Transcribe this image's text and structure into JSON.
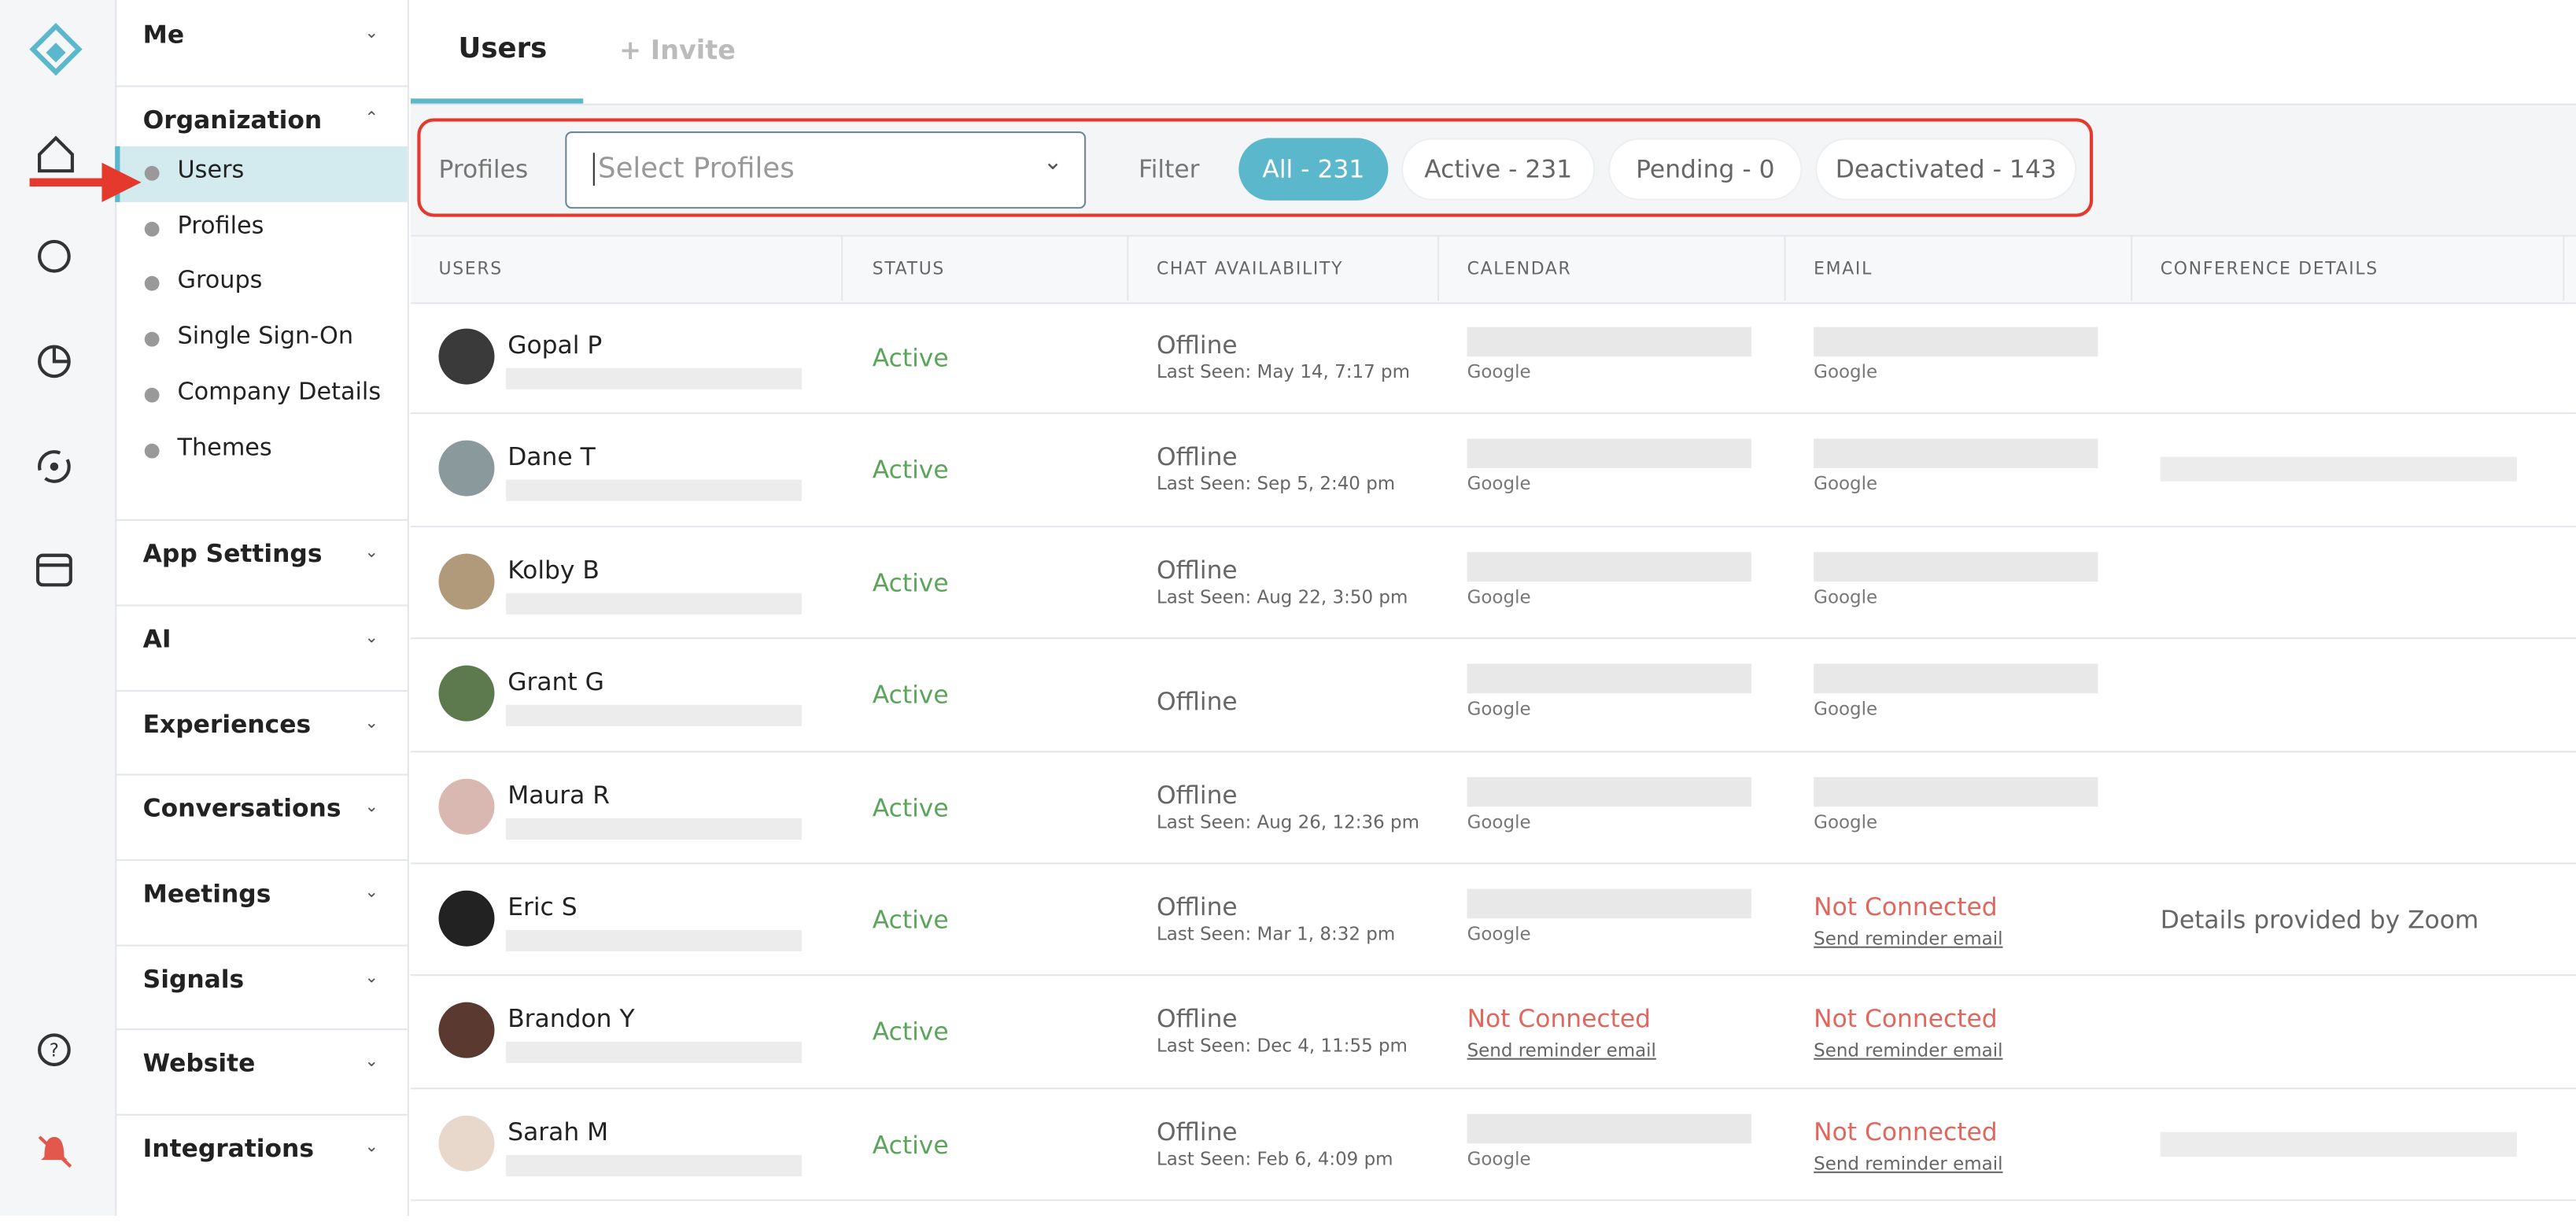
{
  "nav": {
    "sections": [
      {
        "label": "Me"
      },
      {
        "label": "Organization",
        "items": [
          "Users",
          "Profiles",
          "Groups",
          "Single Sign-On",
          "Company Details",
          "Themes"
        ]
      },
      {
        "label": "App Settings"
      },
      {
        "label": "AI"
      },
      {
        "label": "Experiences"
      },
      {
        "label": "Conversations"
      },
      {
        "label": "Meetings"
      },
      {
        "label": "Signals"
      },
      {
        "label": "Website"
      },
      {
        "label": "Integrations"
      }
    ]
  },
  "tabs": [
    "Users",
    "+ Invite"
  ],
  "filter_bar": {
    "profiles_label": "Profiles",
    "profiles_placeholder": "Select Profiles",
    "filter_label": "Filter",
    "filters": [
      "All - 231",
      "Active - 231",
      "Pending - 0",
      "Deactivated - 143"
    ]
  },
  "table": {
    "headers": [
      "USERS",
      "STATUS",
      "CHAT AVAILABILITY",
      "CALENDAR",
      "EMAIL",
      "CONFERENCE DETAILS"
    ],
    "rows": [
      {
        "name": "Gopal P",
        "status": "Active",
        "chat": "Offline",
        "last_seen": "Last Seen: May 14, 7:17 pm",
        "calendar": {
          "provider": "Google"
        },
        "email": {
          "provider": "Google"
        }
      },
      {
        "name": "Dane T",
        "status": "Active",
        "chat": "Offline",
        "last_seen": "Last Seen: Sep 5, 2:40 pm",
        "calendar": {
          "provider": "Google"
        },
        "email": {
          "provider": "Google"
        }
      },
      {
        "name": "Kolby B",
        "status": "Active",
        "chat": "Offline",
        "last_seen": "Last Seen: Aug 22, 3:50 pm",
        "calendar": {
          "provider": "Google"
        },
        "email": {
          "provider": "Google"
        }
      },
      {
        "name": "Grant G",
        "status": "Active",
        "chat": "Offline",
        "calendar": {
          "provider": "Google"
        },
        "email": {
          "provider": "Google"
        }
      },
      {
        "name": "Maura R",
        "status": "Active",
        "chat": "Offline",
        "last_seen": "Last Seen: Aug 26, 12:36 pm",
        "calendar": {
          "provider": "Google"
        },
        "email": {
          "provider": "Google"
        }
      },
      {
        "name": "Eric S",
        "status": "Active",
        "chat": "Offline",
        "last_seen": "Last Seen: Mar 1, 8:32 pm",
        "calendar": {
          "provider": "Google"
        },
        "email": {
          "status": "Not Connected",
          "action": "Send reminder email"
        },
        "conference": "Details provided by Zoom"
      },
      {
        "name": "Brandon Y",
        "status": "Active",
        "chat": "Offline",
        "last_seen": "Last Seen: Dec 4, 11:55 pm",
        "calendar": {
          "status": "Not Connected",
          "action": "Send reminder email"
        },
        "email": {
          "status": "Not Connected",
          "action": "Send reminder email"
        }
      },
      {
        "name": "Sarah M",
        "status": "Active",
        "chat": "Offline",
        "last_seen": "Last Seen: Feb 6, 4:09 pm",
        "calendar": {
          "provider": "Google"
        },
        "email": {
          "status": "Not Connected",
          "action": "Send reminder email"
        }
      }
    ]
  }
}
